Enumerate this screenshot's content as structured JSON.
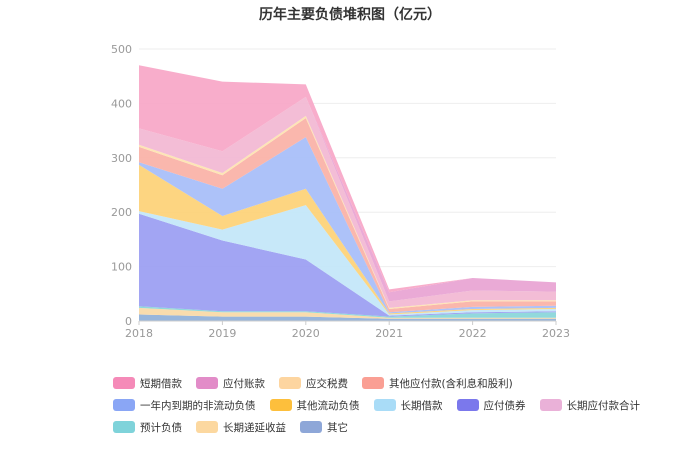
{
  "chart_data": {
    "type": "area",
    "stacked": true,
    "title": "历年主要负债堆积图（亿元）",
    "x": [
      "2018",
      "2019",
      "2020",
      "2021",
      "2022",
      "2023"
    ],
    "ylim": [
      0,
      500
    ],
    "yticks": [
      0,
      100,
      200,
      300,
      400,
      500
    ],
    "grid": true,
    "legend_position": "bottom",
    "series": [
      {
        "name": "其它",
        "color": "#8fb0d9",
        "values": [
          12,
          8,
          8,
          4,
          4,
          4
        ]
      },
      {
        "name": "长期递延收益",
        "color": "#f8d9a6",
        "values": [
          12,
          8,
          8,
          2,
          2,
          2
        ]
      },
      {
        "name": "预计负债",
        "color": "#88d6d9",
        "values": [
          3,
          2,
          2,
          2,
          8,
          10
        ]
      },
      {
        "name": "应付债券",
        "color": "#9a9df2",
        "values": [
          170,
          130,
          95,
          2,
          2,
          2
        ]
      },
      {
        "name": "长期借款",
        "color": "#c2e6f8",
        "values": [
          5,
          20,
          100,
          2,
          4,
          4
        ]
      },
      {
        "name": "其他流动负债",
        "color": "#fdd176",
        "values": [
          85,
          25,
          30,
          2,
          2,
          2
        ]
      },
      {
        "name": "一年内到期的非流动负债",
        "color": "#a6bdf9",
        "values": [
          5,
          50,
          95,
          2,
          4,
          4
        ]
      },
      {
        "name": "其他应付款(含利息和股利)",
        "color": "#fab1a6",
        "values": [
          28,
          25,
          35,
          6,
          10,
          8
        ]
      },
      {
        "name": "应交税费",
        "color": "#fde3b0",
        "values": [
          4,
          4,
          4,
          2,
          2,
          2
        ]
      },
      {
        "name": "长期应付款合计",
        "color": "#f2b7d2",
        "values": [
          30,
          40,
          35,
          12,
          18,
          16
        ]
      },
      {
        "name": "应付账款",
        "color": "#e8a3d3",
        "values": [
          0,
          0,
          0,
          17,
          23,
          17
        ]
      },
      {
        "name": "短期借款",
        "color": "#f7a6c7",
        "values": [
          116,
          128,
          23,
          5,
          0,
          0
        ]
      }
    ],
    "legend_rows": [
      [
        {
          "name": "短期借款",
          "color": "#f58ab8"
        },
        {
          "name": "应付账款",
          "color": "#e28cc8"
        },
        {
          "name": "应交税费",
          "color": "#fdd5a0"
        },
        {
          "name": "其他应付款(含利息和股利)",
          "color": "#fa9f94"
        }
      ],
      [
        {
          "name": "一年内到期的非流动负债",
          "color": "#8aa6f5"
        },
        {
          "name": "其他流动负债",
          "color": "#fdbf3c"
        },
        {
          "name": "长期借款",
          "color": "#a9dcf7"
        },
        {
          "name": "应付债券",
          "color": "#7b78ec"
        },
        {
          "name": "长期应付款合计",
          "color": "#eab1d8"
        }
      ],
      [
        {
          "name": "预计负债",
          "color": "#7fd3da"
        },
        {
          "name": "长期递延收益",
          "color": "#fcd8a0"
        },
        {
          "name": "其它",
          "color": "#8ea7d8"
        }
      ]
    ]
  }
}
